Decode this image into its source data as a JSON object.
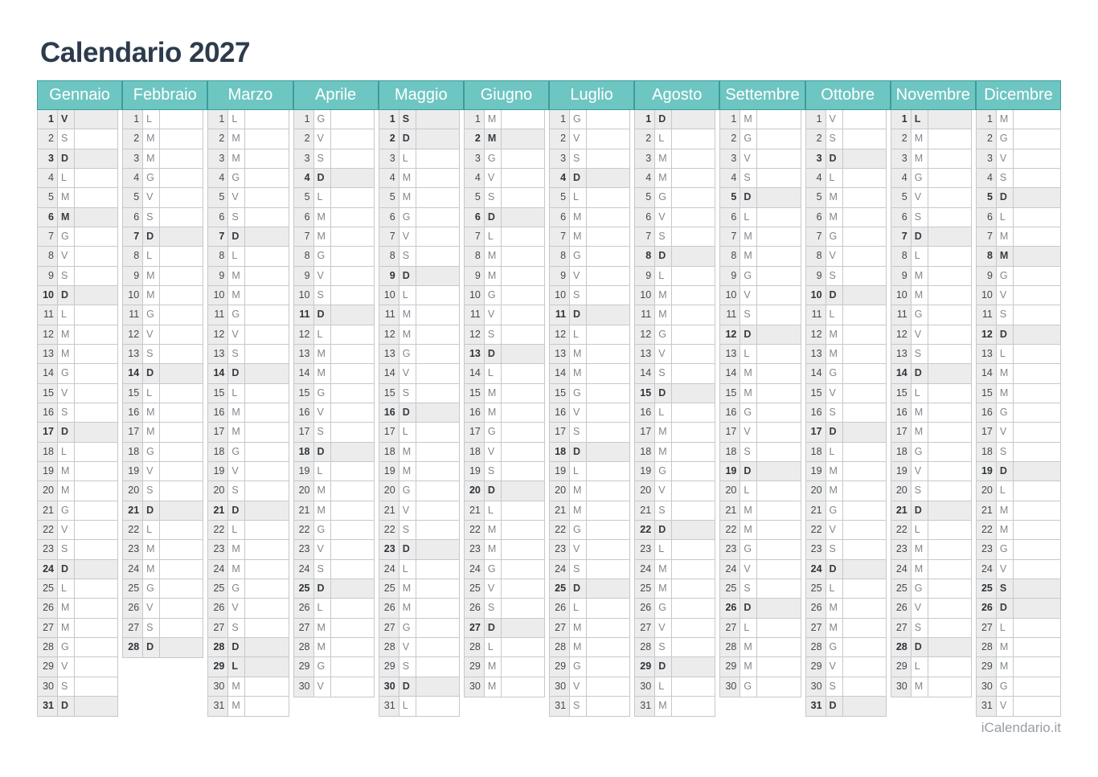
{
  "title": "Calendario 2027",
  "footer": {
    "brand": "iCalendario.it"
  },
  "theme": {
    "accent": "#6ec6c2",
    "accent_border": "#3a9d99",
    "grid_border": "#c6c8cb",
    "shade": "#ececec",
    "title_color": "#2d3b4d"
  },
  "weekday_letters_legend": [
    "L",
    "M",
    "M",
    "G",
    "V",
    "S",
    "D"
  ],
  "months": [
    {
      "name": "Gennaio",
      "letters": [
        "V",
        "S",
        "D",
        "L",
        "M",
        "M",
        "G",
        "V",
        "S",
        "D",
        "L",
        "M",
        "M",
        "G",
        "V",
        "S",
        "D",
        "L",
        "M",
        "M",
        "G",
        "V",
        "S",
        "D",
        "L",
        "M",
        "M",
        "G",
        "V",
        "S",
        "D"
      ],
      "highlight": [
        1,
        3,
        6,
        10,
        17,
        24,
        31
      ]
    },
    {
      "name": "Febbraio",
      "letters": [
        "L",
        "M",
        "M",
        "G",
        "V",
        "S",
        "D",
        "L",
        "M",
        "M",
        "G",
        "V",
        "S",
        "D",
        "L",
        "M",
        "M",
        "G",
        "V",
        "S",
        "D",
        "L",
        "M",
        "M",
        "G",
        "V",
        "S",
        "D"
      ],
      "highlight": [
        7,
        14,
        21,
        28
      ]
    },
    {
      "name": "Marzo",
      "letters": [
        "L",
        "M",
        "M",
        "G",
        "V",
        "S",
        "D",
        "L",
        "M",
        "M",
        "G",
        "V",
        "S",
        "D",
        "L",
        "M",
        "M",
        "G",
        "V",
        "S",
        "D",
        "L",
        "M",
        "M",
        "G",
        "V",
        "S",
        "D",
        "L",
        "M",
        "M"
      ],
      "highlight": [
        7,
        14,
        21,
        28,
        29
      ]
    },
    {
      "name": "Aprile",
      "letters": [
        "G",
        "V",
        "S",
        "D",
        "L",
        "M",
        "M",
        "G",
        "V",
        "S",
        "D",
        "L",
        "M",
        "M",
        "G",
        "V",
        "S",
        "D",
        "L",
        "M",
        "M",
        "G",
        "V",
        "S",
        "D",
        "L",
        "M",
        "M",
        "G",
        "V"
      ],
      "highlight": [
        4,
        11,
        18,
        25
      ]
    },
    {
      "name": "Maggio",
      "letters": [
        "S",
        "D",
        "L",
        "M",
        "M",
        "G",
        "V",
        "S",
        "D",
        "L",
        "M",
        "M",
        "G",
        "V",
        "S",
        "D",
        "L",
        "M",
        "M",
        "G",
        "V",
        "S",
        "D",
        "L",
        "M",
        "M",
        "G",
        "V",
        "S",
        "D",
        "L"
      ],
      "highlight": [
        1,
        2,
        9,
        16,
        23,
        30
      ]
    },
    {
      "name": "Giugno",
      "letters": [
        "M",
        "M",
        "G",
        "V",
        "S",
        "D",
        "L",
        "M",
        "M",
        "G",
        "V",
        "S",
        "D",
        "L",
        "M",
        "M",
        "G",
        "V",
        "S",
        "D",
        "L",
        "M",
        "M",
        "G",
        "V",
        "S",
        "D",
        "L",
        "M",
        "M"
      ],
      "highlight": [
        2,
        6,
        13,
        20,
        27
      ]
    },
    {
      "name": "Luglio",
      "letters": [
        "G",
        "V",
        "S",
        "D",
        "L",
        "M",
        "M",
        "G",
        "V",
        "S",
        "D",
        "L",
        "M",
        "M",
        "G",
        "V",
        "S",
        "D",
        "L",
        "M",
        "M",
        "G",
        "V",
        "S",
        "D",
        "L",
        "M",
        "M",
        "G",
        "V",
        "S"
      ],
      "highlight": [
        4,
        11,
        18,
        25
      ]
    },
    {
      "name": "Agosto",
      "letters": [
        "D",
        "L",
        "M",
        "M",
        "G",
        "V",
        "S",
        "D",
        "L",
        "M",
        "M",
        "G",
        "V",
        "S",
        "D",
        "L",
        "M",
        "M",
        "G",
        "V",
        "S",
        "D",
        "L",
        "M",
        "M",
        "G",
        "V",
        "S",
        "D",
        "L",
        "M"
      ],
      "highlight": [
        1,
        8,
        15,
        22,
        29
      ]
    },
    {
      "name": "Settembre",
      "letters": [
        "M",
        "G",
        "V",
        "S",
        "D",
        "L",
        "M",
        "M",
        "G",
        "V",
        "S",
        "D",
        "L",
        "M",
        "M",
        "G",
        "V",
        "S",
        "D",
        "L",
        "M",
        "M",
        "G",
        "V",
        "S",
        "D",
        "L",
        "M",
        "M",
        "G"
      ],
      "highlight": [
        5,
        12,
        19,
        26
      ]
    },
    {
      "name": "Ottobre",
      "letters": [
        "V",
        "S",
        "D",
        "L",
        "M",
        "M",
        "G",
        "V",
        "S",
        "D",
        "L",
        "M",
        "M",
        "G",
        "V",
        "S",
        "D",
        "L",
        "M",
        "M",
        "G",
        "V",
        "S",
        "D",
        "L",
        "M",
        "M",
        "G",
        "V",
        "S",
        "D"
      ],
      "highlight": [
        3,
        10,
        17,
        24,
        31
      ]
    },
    {
      "name": "Novembre",
      "letters": [
        "L",
        "M",
        "M",
        "G",
        "V",
        "S",
        "D",
        "L",
        "M",
        "M",
        "G",
        "V",
        "S",
        "D",
        "L",
        "M",
        "M",
        "G",
        "V",
        "S",
        "D",
        "L",
        "M",
        "M",
        "G",
        "V",
        "S",
        "D",
        "L",
        "M"
      ],
      "highlight": [
        1,
        7,
        14,
        21,
        28
      ]
    },
    {
      "name": "Dicembre",
      "letters": [
        "M",
        "G",
        "V",
        "S",
        "D",
        "L",
        "M",
        "M",
        "G",
        "V",
        "S",
        "D",
        "L",
        "M",
        "M",
        "G",
        "V",
        "S",
        "D",
        "L",
        "M",
        "M",
        "G",
        "V",
        "S",
        "D",
        "L",
        "M",
        "M",
        "G",
        "V"
      ],
      "highlight": [
        5,
        8,
        12,
        19,
        25,
        26
      ]
    }
  ]
}
